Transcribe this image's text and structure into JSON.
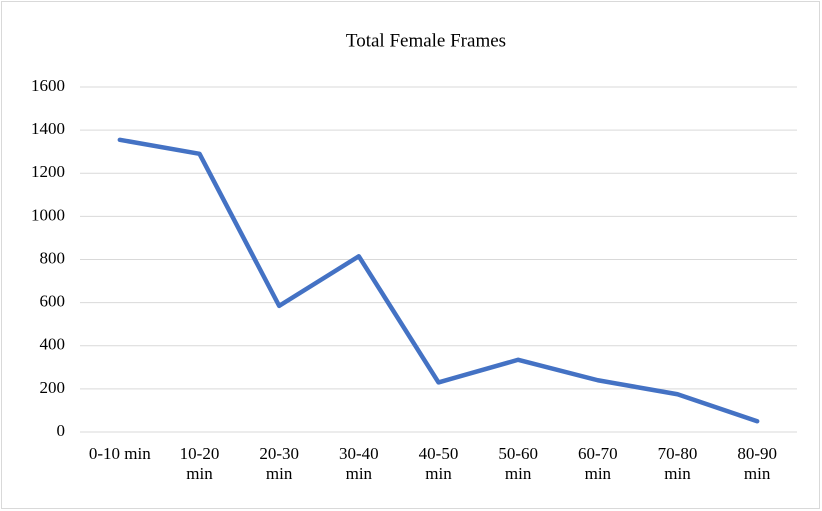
{
  "chart_data": {
    "type": "line",
    "title": "Total Female Frames",
    "categories": [
      "0-10 min",
      "10-20 min",
      "20-30 min",
      "30-40 min",
      "40-50 min",
      "50-60 min",
      "60-70 min",
      "70-80 min",
      "80-90 min"
    ],
    "values": [
      1355,
      1290,
      585,
      815,
      230,
      335,
      240,
      175,
      50
    ],
    "color": "#4472c4",
    "ylim": [
      0,
      1600
    ],
    "yticks": [
      0,
      200,
      400,
      600,
      800,
      1000,
      1200,
      1400,
      1600
    ],
    "grid": true
  }
}
